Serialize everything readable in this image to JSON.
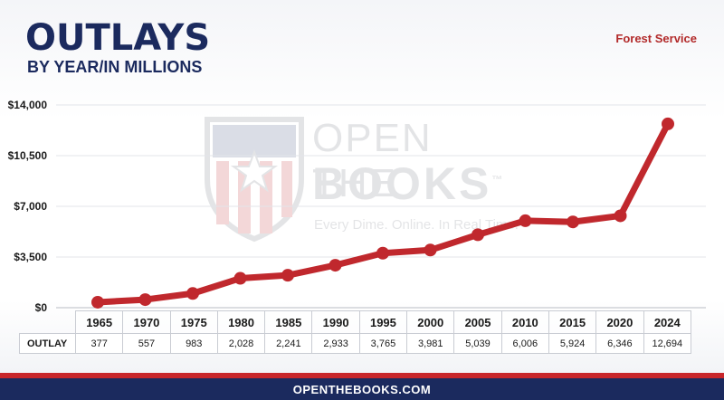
{
  "header": {
    "title": "OUTLAYS",
    "subtitle": "BY YEAR/IN MILLIONS",
    "agency": "Forest Service"
  },
  "watermark": {
    "line1": "OPEN THE",
    "line2": "BOOKS",
    "trademark": "™",
    "tagline": "Every Dime. Online. In Real Time."
  },
  "chart_data": {
    "type": "line",
    "title": "OUTLAYS",
    "subtitle": "BY YEAR/IN MILLIONS",
    "categories": [
      "1965",
      "1970",
      "1975",
      "1980",
      "1985",
      "1990",
      "1995",
      "2000",
      "2005",
      "2010",
      "2015",
      "2020",
      "2024"
    ],
    "series": [
      {
        "values": [
          377,
          557,
          983,
          2028,
          2241,
          2933,
          3765,
          3981,
          5039,
          6006,
          5924,
          6346,
          12694
        ],
        "color": "#c0282d"
      }
    ],
    "yticks": [
      "$0",
      "$3,500",
      "$7,000",
      "$10,500",
      "$14,000"
    ],
    "ylim": [
      0,
      14000
    ],
    "grid": true
  },
  "table": {
    "row_label": "OUTLAY",
    "values": [
      "377",
      "557",
      "983",
      "2,028",
      "2,241",
      "2,933",
      "3,765",
      "3,981",
      "5,039",
      "6,006",
      "5,924",
      "6,346",
      "12,694"
    ]
  },
  "footer": {
    "text": "OPENTHEBOOKS.COM"
  },
  "colors": {
    "navy": "#1b2a5e",
    "red": "#c0282d",
    "grid": "#e3e5ea"
  }
}
